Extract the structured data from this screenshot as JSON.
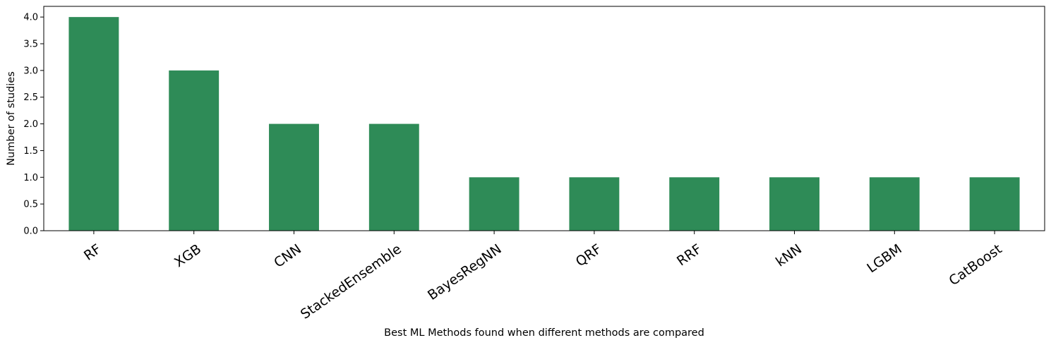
{
  "chart_data": {
    "type": "bar",
    "x_label": "Best ML Methods found when different methods are compared",
    "y_label": "Number of studies",
    "categories": [
      "RF",
      "XGB",
      "CNN",
      "StackedEnsemble",
      "BayesRegNN",
      "QRF",
      "RRF",
      "kNN",
      "LGBM",
      "CatBoost"
    ],
    "values": [
      4,
      3,
      2,
      2,
      1,
      1,
      1,
      1,
      1,
      1
    ],
    "color": "#2e8b57",
    "ylim": [
      0,
      4.2
    ],
    "yticks": [
      {
        "value": 0,
        "label": "0.0"
      },
      {
        "value": 0.5,
        "label": "0.5"
      },
      {
        "value": 1,
        "label": "1.0"
      },
      {
        "value": 1.5,
        "label": "1.5"
      },
      {
        "value": 2,
        "label": "2.0"
      },
      {
        "value": 2.5,
        "label": "2.5"
      },
      {
        "value": 3,
        "label": "3.0"
      },
      {
        "value": 3.5,
        "label": "3.5"
      },
      {
        "value": 4,
        "label": "4.0"
      }
    ],
    "grid": false
  }
}
